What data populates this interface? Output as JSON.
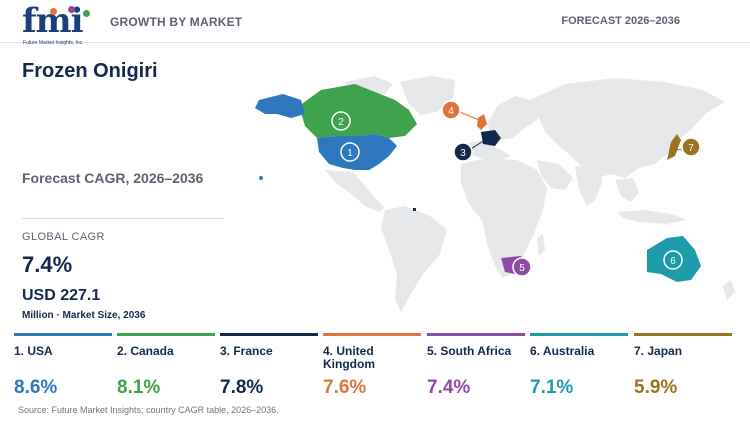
{
  "header": {
    "logo_text": "fmi",
    "logo_subtext": "Future Market Insights, Inc.",
    "section_title": "GROWTH BY MARKET",
    "forecast_range": "FORECAST 2026–2036"
  },
  "report": {
    "title": "Frozen Onigiri",
    "subtitle": "Forecast CAGR, 2026–2036",
    "global_cagr_label": "GLOBAL CAGR",
    "global_cagr_value": "7.4%",
    "market_size_value": "USD 227.1",
    "market_size_note": "Million · Market Size, 2036"
  },
  "colors": {
    "usa": "#2f77bc",
    "canada": "#3fa24c",
    "france": "#13294b",
    "uk": "#e0743a",
    "south_africa": "#8e4aa5",
    "australia": "#1e9bab",
    "japan": "#9a7420",
    "land": "#e6e8ea"
  },
  "countries": [
    {
      "rank": "1",
      "name": "1. USA",
      "cagr": "8.6%",
      "color": "#2f77bc"
    },
    {
      "rank": "2",
      "name": "2. Canada",
      "cagr": "8.1%",
      "color": "#3fa24c"
    },
    {
      "rank": "3",
      "name": "3. France",
      "cagr": "7.8%",
      "color": "#13294b"
    },
    {
      "rank": "4",
      "name": "4. United Kingdom",
      "cagr": "7.6%",
      "color": "#e0743a"
    },
    {
      "rank": "5",
      "name": "5. South Africa",
      "cagr": "7.4%",
      "color": "#8e4aa5"
    },
    {
      "rank": "6",
      "name": "6. Australia",
      "cagr": "7.1%",
      "color": "#1e9bab"
    },
    {
      "rank": "7",
      "name": "7. Japan",
      "cagr": "5.9%",
      "color": "#9a7420"
    }
  ],
  "source": "Source: Future Market Insights; country CAGR table, 2026–2036."
}
